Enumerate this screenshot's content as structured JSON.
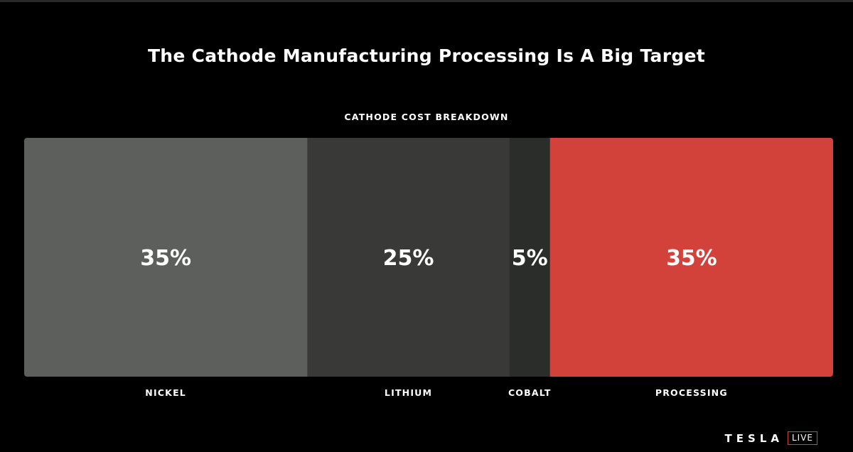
{
  "slide": {
    "title": "The Cathode Manufacturing Processing Is A Big Target"
  },
  "brand": {
    "name": "TESLA",
    "badge": "LIVE",
    "badge_color": "#d2423a"
  },
  "chart_data": {
    "type": "bar",
    "orientation": "horizontal-stacked",
    "title": "CATHODE COST BREAKDOWN",
    "unit": "%",
    "categories": [
      "NICKEL",
      "LITHIUM",
      "COBALT",
      "PROCESSING"
    ],
    "values": [
      35,
      25,
      5,
      35
    ],
    "value_labels": [
      "35%",
      "25%",
      "5%",
      "35%"
    ],
    "colors": [
      "#5d5f5c",
      "#393a38",
      "#2b2d2b",
      "#d2423a"
    ],
    "grid": false,
    "legend": "none"
  }
}
